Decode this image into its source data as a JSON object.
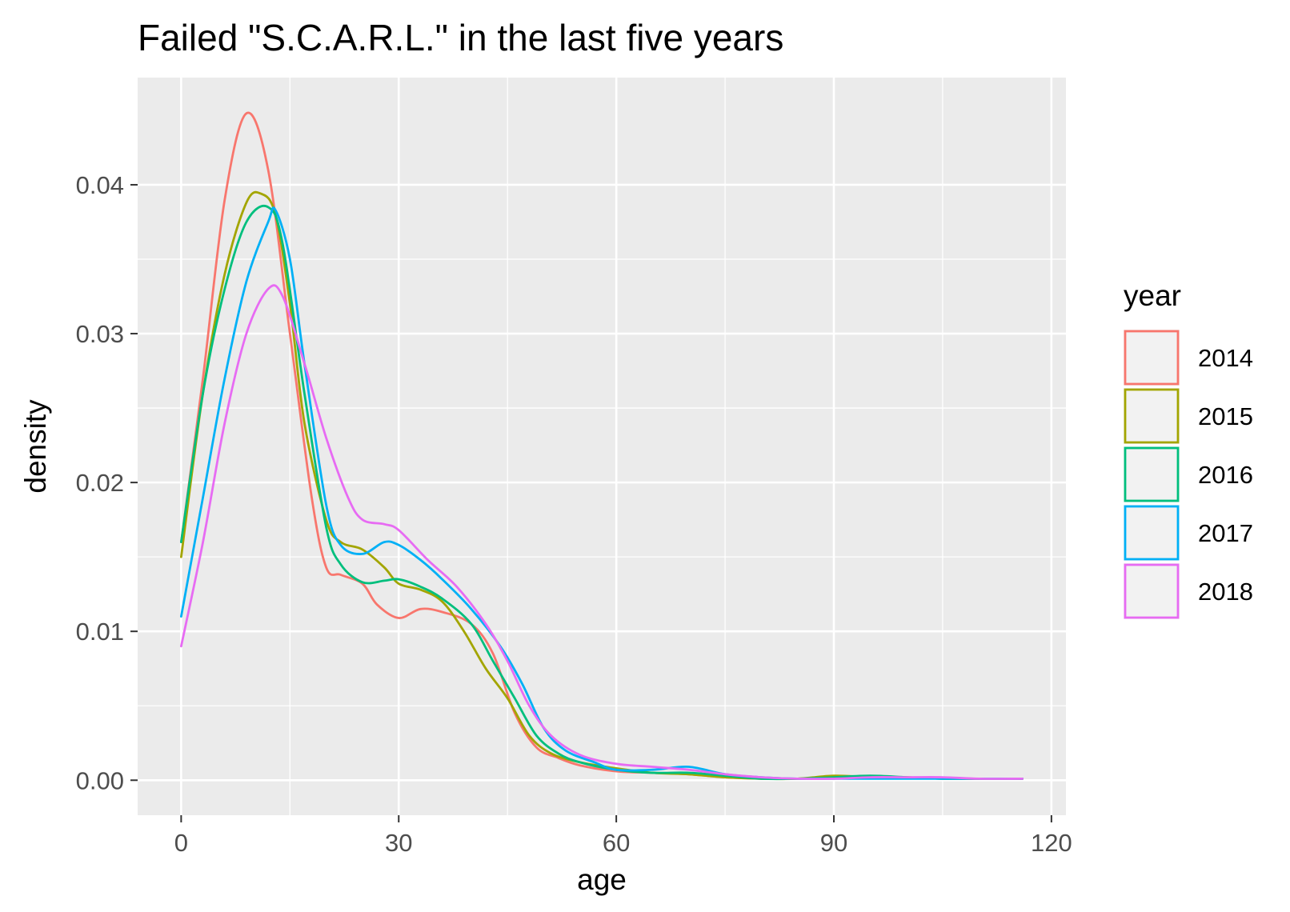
{
  "chart_data": {
    "type": "line",
    "title": "Failed \"S.C.A.R.L.\" in the last five years",
    "xlabel": "age",
    "ylabel": "density",
    "xlim": [
      -6,
      122
    ],
    "ylim": [
      -0.00235,
      0.0472
    ],
    "x_ticks": [
      {
        "value": 0,
        "label": "0"
      },
      {
        "value": 30,
        "label": "30"
      },
      {
        "value": 60,
        "label": "60"
      },
      {
        "value": 90,
        "label": "90"
      },
      {
        "value": 120,
        "label": "120"
      }
    ],
    "y_ticks": [
      {
        "value": 0.0,
        "label": "0.00"
      },
      {
        "value": 0.01,
        "label": "0.01"
      },
      {
        "value": 0.02,
        "label": "0.02"
      },
      {
        "value": 0.03,
        "label": "0.03"
      },
      {
        "value": 0.04,
        "label": "0.04"
      }
    ],
    "grid": true,
    "legend": {
      "title": "year",
      "placement": "right"
    },
    "series": [
      {
        "name": "2014",
        "color": "#F8766D",
        "points": [
          [
            0,
            0.016
          ],
          [
            3,
            0.027
          ],
          [
            6,
            0.039
          ],
          [
            9,
            0.0448
          ],
          [
            12,
            0.041
          ],
          [
            15,
            0.03
          ],
          [
            18,
            0.019
          ],
          [
            20,
            0.0143
          ],
          [
            22,
            0.0138
          ],
          [
            25,
            0.0132
          ],
          [
            27,
            0.0118
          ],
          [
            30,
            0.0109
          ],
          [
            33,
            0.0115
          ],
          [
            36,
            0.0113
          ],
          [
            40,
            0.0105
          ],
          [
            43,
            0.0085
          ],
          [
            46,
            0.0045
          ],
          [
            49,
            0.0022
          ],
          [
            52,
            0.0015
          ],
          [
            55,
            0.001
          ],
          [
            60,
            0.0006
          ],
          [
            65,
            0.0005
          ],
          [
            70,
            0.0004
          ],
          [
            75,
            0.0002
          ],
          [
            80,
            0.0001
          ],
          [
            85,
            0.0001
          ],
          [
            90,
            0.0002
          ],
          [
            95,
            0.0002
          ],
          [
            100,
            0.0002
          ],
          [
            105,
            0.0001
          ],
          [
            110,
            0.0001
          ],
          [
            116,
            0.0001
          ]
        ]
      },
      {
        "name": "2015",
        "color": "#A3A500",
        "points": [
          [
            0,
            0.015
          ],
          [
            3,
            0.026
          ],
          [
            6,
            0.034
          ],
          [
            9,
            0.0388
          ],
          [
            11,
            0.0394
          ],
          [
            13,
            0.038
          ],
          [
            15,
            0.032
          ],
          [
            17,
            0.024
          ],
          [
            20,
            0.0175
          ],
          [
            22,
            0.016
          ],
          [
            25,
            0.0155
          ],
          [
            28,
            0.0143
          ],
          [
            30,
            0.0132
          ],
          [
            33,
            0.0128
          ],
          [
            36,
            0.012
          ],
          [
            39,
            0.01
          ],
          [
            42,
            0.0075
          ],
          [
            45,
            0.0055
          ],
          [
            48,
            0.003
          ],
          [
            51,
            0.0018
          ],
          [
            55,
            0.0012
          ],
          [
            60,
            0.0008
          ],
          [
            65,
            0.0005
          ],
          [
            70,
            0.0004
          ],
          [
            75,
            0.0002
          ],
          [
            80,
            0.0001
          ],
          [
            85,
            0.0001
          ],
          [
            90,
            0.0003
          ],
          [
            95,
            0.0002
          ],
          [
            100,
            0.0002
          ],
          [
            105,
            0.0001
          ],
          [
            110,
            0.0001
          ],
          [
            116,
            0.0001
          ]
        ]
      },
      {
        "name": "2016",
        "color": "#00BF7D",
        "points": [
          [
            0,
            0.016
          ],
          [
            3,
            0.026
          ],
          [
            6,
            0.033
          ],
          [
            9,
            0.0375
          ],
          [
            12,
            0.0385
          ],
          [
            14,
            0.036
          ],
          [
            17,
            0.026
          ],
          [
            20,
            0.017
          ],
          [
            22,
            0.0145
          ],
          [
            25,
            0.0133
          ],
          [
            28,
            0.0134
          ],
          [
            30,
            0.0135
          ],
          [
            33,
            0.013
          ],
          [
            36,
            0.0122
          ],
          [
            40,
            0.0105
          ],
          [
            43,
            0.008
          ],
          [
            46,
            0.0055
          ],
          [
            49,
            0.003
          ],
          [
            52,
            0.0018
          ],
          [
            55,
            0.0012
          ],
          [
            60,
            0.0007
          ],
          [
            65,
            0.0005
          ],
          [
            70,
            0.0005
          ],
          [
            75,
            0.0003
          ],
          [
            80,
            0.0001
          ],
          [
            85,
            0.0001
          ],
          [
            90,
            0.0002
          ],
          [
            95,
            0.0003
          ],
          [
            100,
            0.0002
          ],
          [
            105,
            0.0001
          ],
          [
            110,
            0.0001
          ],
          [
            116,
            0.0001
          ]
        ]
      },
      {
        "name": "2017",
        "color": "#00B0F6",
        "points": [
          [
            0,
            0.011
          ],
          [
            3,
            0.019
          ],
          [
            6,
            0.027
          ],
          [
            9,
            0.0335
          ],
          [
            12,
            0.0375
          ],
          [
            13,
            0.0383
          ],
          [
            15,
            0.035
          ],
          [
            17,
            0.028
          ],
          [
            20,
            0.0185
          ],
          [
            22,
            0.0158
          ],
          [
            25,
            0.0152
          ],
          [
            28,
            0.016
          ],
          [
            30,
            0.0158
          ],
          [
            33,
            0.0148
          ],
          [
            36,
            0.0135
          ],
          [
            40,
            0.0115
          ],
          [
            44,
            0.009
          ],
          [
            47,
            0.0065
          ],
          [
            50,
            0.0035
          ],
          [
            53,
            0.002
          ],
          [
            57,
            0.0012
          ],
          [
            60,
            0.0007
          ],
          [
            65,
            0.0007
          ],
          [
            70,
            0.0009
          ],
          [
            75,
            0.0004
          ],
          [
            80,
            0.0002
          ],
          [
            85,
            0.0001
          ],
          [
            90,
            0.0001
          ],
          [
            95,
            0.0001
          ],
          [
            100,
            0.0001
          ],
          [
            105,
            0.0001
          ],
          [
            110,
            0.0001
          ],
          [
            116,
            0.0001
          ]
        ]
      },
      {
        "name": "2018",
        "color": "#E76BF3",
        "points": [
          [
            0,
            0.009
          ],
          [
            3,
            0.016
          ],
          [
            6,
            0.024
          ],
          [
            9,
            0.03
          ],
          [
            12,
            0.033
          ],
          [
            14,
            0.0325
          ],
          [
            17,
            0.028
          ],
          [
            20,
            0.023
          ],
          [
            23,
            0.019
          ],
          [
            25,
            0.0175
          ],
          [
            28,
            0.0172
          ],
          [
            30,
            0.0168
          ],
          [
            34,
            0.0148
          ],
          [
            38,
            0.013
          ],
          [
            42,
            0.0105
          ],
          [
            45,
            0.008
          ],
          [
            48,
            0.005
          ],
          [
            51,
            0.003
          ],
          [
            55,
            0.0017
          ],
          [
            60,
            0.0011
          ],
          [
            65,
            0.0009
          ],
          [
            70,
            0.0007
          ],
          [
            75,
            0.0004
          ],
          [
            80,
            0.0002
          ],
          [
            85,
            0.0001
          ],
          [
            90,
            0.0001
          ],
          [
            95,
            0.0002
          ],
          [
            100,
            0.0002
          ],
          [
            105,
            0.0002
          ],
          [
            110,
            0.0001
          ],
          [
            116,
            0.0001
          ]
        ]
      }
    ]
  }
}
